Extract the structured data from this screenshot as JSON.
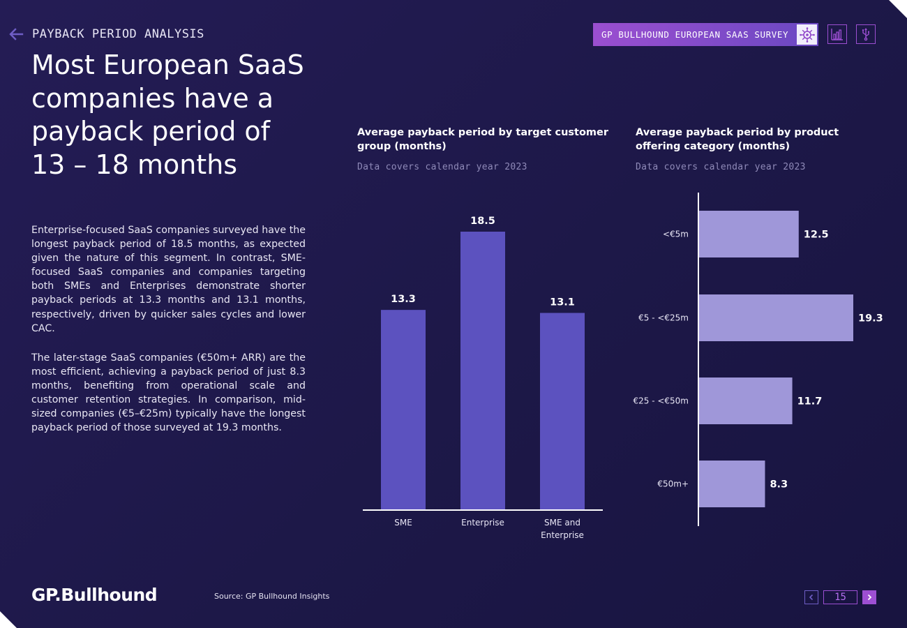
{
  "header": {
    "section_label": "PAYBACK PERIOD ANALYSIS",
    "survey_badge": "GP BULLHOUND EUROPEAN SAAS SURVEY"
  },
  "title_lines": [
    "Most European SaaS",
    "companies have a",
    "payback period of",
    "13 – 18 months"
  ],
  "body": {
    "p1": "Enterprise-focused SaaS companies surveyed have the longest payback period of 18.5 months, as expected given the nature of this segment. In contrast, SME-focused SaaS companies and companies targeting both SMEs and Enterprises demonstrate shorter payback periods at 13.3 months and 13.1 months, respectively, driven by quicker sales cycles and lower CAC.",
    "p2": "The later-stage SaaS companies (€50m+ ARR) are the most efficient, achieving a payback period of just 8.3 months, benefiting from operational scale and customer retention strategies. In comparison, mid-sized companies (€5–€25m) typically have the longest payback period of those surveyed at 19.3 months."
  },
  "chart_data": [
    {
      "type": "bar",
      "orientation": "vertical",
      "title": "Average payback period by target customer group (months)",
      "subtitle": "Data covers calendar year 2023",
      "categories": [
        "SME",
        "Enterprise",
        "SME and Enterprise"
      ],
      "values": [
        13.3,
        18.5,
        13.1
      ],
      "value_labels": [
        "13.3",
        "18.5",
        "13.1"
      ],
      "ylim": [
        0,
        20
      ],
      "grid": false,
      "bar_color": "#5c52bf"
    },
    {
      "type": "bar",
      "orientation": "horizontal",
      "title": "Average payback period by product offering category (months)",
      "subtitle": "Data covers calendar year 2023",
      "categories": [
        "<€5m",
        "€5 - <€25m",
        "€25 - <€50m",
        "€50m+"
      ],
      "values": [
        12.5,
        19.3,
        11.7,
        8.3
      ],
      "value_labels": [
        "12.5",
        "19.3",
        "11.7",
        "8.3"
      ],
      "xlim": [
        0,
        20
      ],
      "grid": false,
      "bar_color": "#9f97d9"
    }
  ],
  "footer": {
    "logo": "GP.Bullhound",
    "source": "Source: GP Bullhound Insights",
    "page_number": "15"
  },
  "colors": {
    "accent_purple": "#9d4fd3",
    "background": "#1d1848",
    "bar_primary": "#5c52bf",
    "bar_secondary": "#9f97d9"
  },
  "icons": {
    "back": "arrow-left-icon",
    "badge": "virus-icon",
    "chart": "bar-chart-icon",
    "usb": "usb-icon",
    "prev": "chevron-left-icon",
    "next": "chevron-right-icon"
  }
}
